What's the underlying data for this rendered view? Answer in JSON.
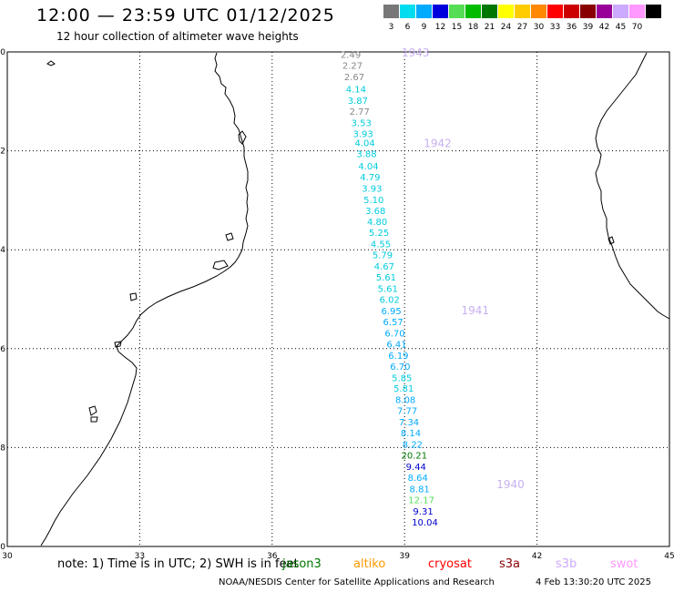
{
  "title": "12:00 — 23:59 UTC 01/12/2025",
  "subtitle": "12 hour collection of altimeter wave heights",
  "legend": {
    "unit": "(ft)",
    "items": [
      {
        "label": "3",
        "color": "#777777"
      },
      {
        "label": "6",
        "color": "#00ddee"
      },
      {
        "label": "9",
        "color": "#00aaff"
      },
      {
        "label": "12",
        "color": "#0000dd"
      },
      {
        "label": "15",
        "color": "#55dd55"
      },
      {
        "label": "18",
        "color": "#00bb00"
      },
      {
        "label": "21",
        "color": "#007700"
      },
      {
        "label": "24",
        "color": "#ffff00"
      },
      {
        "label": "27",
        "color": "#ffcc00"
      },
      {
        "label": "30",
        "color": "#ff8800"
      },
      {
        "label": "33",
        "color": "#ff0000"
      },
      {
        "label": "36",
        "color": "#cc0000"
      },
      {
        "label": "39",
        "color": "#880000"
      },
      {
        "label": "42",
        "color": "#990099"
      },
      {
        "label": "45",
        "color": "#ccaaff"
      },
      {
        "label": "70",
        "color": "#ff99ff"
      },
      {
        "label": "",
        "color": "#000000"
      }
    ]
  },
  "axes": {
    "lon_ticks": [
      "30",
      "33",
      "36",
      "39",
      "42",
      "45"
    ],
    "lat_ticks": [
      "-20",
      "-22",
      "-24",
      "-26",
      "-28",
      "-30"
    ],
    "lon_range": [
      30,
      45
    ],
    "lat_range": [
      -30,
      -20
    ],
    "grid": "dotted"
  },
  "chart_data": {
    "type": "scatter",
    "x_name": "lon",
    "y_name": "lat",
    "observations": [
      {
        "lat": -20.05,
        "lon": 37.78,
        "swh": "2.49",
        "color": "#888888"
      },
      {
        "lat": -20.27,
        "lon": 37.82,
        "swh": "2.27",
        "color": "#888888"
      },
      {
        "lat": -20.5,
        "lon": 37.86,
        "swh": "2.67",
        "color": "#888888"
      },
      {
        "lat": -20.75,
        "lon": 37.9,
        "swh": "4.14",
        "color": "#00ccdd"
      },
      {
        "lat": -20.98,
        "lon": 37.94,
        "swh": "3.87",
        "color": "#00ccdd"
      },
      {
        "lat": -21.2,
        "lon": 37.98,
        "swh": "2.77",
        "color": "#888888"
      },
      {
        "lat": -21.43,
        "lon": 38.02,
        "swh": "3.53",
        "color": "#00ccdd"
      },
      {
        "lat": -21.65,
        "lon": 38.06,
        "swh": "3.93",
        "color": "#00ccdd"
      },
      {
        "lat": -21.83,
        "lon": 38.1,
        "swh": "4.04",
        "color": "#00ccdd"
      },
      {
        "lat": -22.05,
        "lon": 38.14,
        "swh": "3.88",
        "color": "#00ccdd"
      },
      {
        "lat": -22.3,
        "lon": 38.18,
        "swh": "4.04",
        "color": "#00ccdd"
      },
      {
        "lat": -22.52,
        "lon": 38.22,
        "swh": "4.79",
        "color": "#00ccdd"
      },
      {
        "lat": -22.75,
        "lon": 38.26,
        "swh": "3.93",
        "color": "#00ccdd"
      },
      {
        "lat": -22.98,
        "lon": 38.3,
        "swh": "5.10",
        "color": "#00ccdd"
      },
      {
        "lat": -23.2,
        "lon": 38.34,
        "swh": "3.68",
        "color": "#00ccdd"
      },
      {
        "lat": -23.43,
        "lon": 38.38,
        "swh": "4.80",
        "color": "#00ccdd"
      },
      {
        "lat": -23.65,
        "lon": 38.42,
        "swh": "5.25",
        "color": "#00ccdd"
      },
      {
        "lat": -23.88,
        "lon": 38.46,
        "swh": "4.55",
        "color": "#00ccdd"
      },
      {
        "lat": -24.1,
        "lon": 38.5,
        "swh": "5.79",
        "color": "#00ccdd"
      },
      {
        "lat": -24.33,
        "lon": 38.54,
        "swh": "4.67",
        "color": "#00ccdd"
      },
      {
        "lat": -24.55,
        "lon": 38.58,
        "swh": "5.61",
        "color": "#00ccdd"
      },
      {
        "lat": -24.78,
        "lon": 38.62,
        "swh": "5.61",
        "color": "#00ccdd"
      },
      {
        "lat": -25.0,
        "lon": 38.66,
        "swh": "6.02",
        "color": "#00ccdd"
      },
      {
        "lat": -25.23,
        "lon": 38.7,
        "swh": "6.95",
        "color": "#00aaff"
      },
      {
        "lat": -25.45,
        "lon": 38.74,
        "swh": "6.57",
        "color": "#00aaff"
      },
      {
        "lat": -25.68,
        "lon": 38.78,
        "swh": "6.70",
        "color": "#00aaff"
      },
      {
        "lat": -25.9,
        "lon": 38.82,
        "swh": "6.41",
        "color": "#00aaff"
      },
      {
        "lat": -26.13,
        "lon": 38.86,
        "swh": "6.19",
        "color": "#00aaff"
      },
      {
        "lat": -26.35,
        "lon": 38.9,
        "swh": "6.70",
        "color": "#00aaff"
      },
      {
        "lat": -26.58,
        "lon": 38.94,
        "swh": "5.85",
        "color": "#00ccdd"
      },
      {
        "lat": -26.8,
        "lon": 38.98,
        "swh": "5.81",
        "color": "#00ccdd"
      },
      {
        "lat": -27.03,
        "lon": 39.02,
        "swh": "8.08",
        "color": "#00aaff"
      },
      {
        "lat": -27.25,
        "lon": 39.06,
        "swh": "7.77",
        "color": "#00aaff"
      },
      {
        "lat": -27.48,
        "lon": 39.1,
        "swh": "7.34",
        "color": "#00aaff"
      },
      {
        "lat": -27.7,
        "lon": 39.14,
        "swh": "8.14",
        "color": "#00aaff"
      },
      {
        "lat": -27.93,
        "lon": 39.18,
        "swh": "8.22",
        "color": "#00aaff"
      },
      {
        "lat": -28.15,
        "lon": 39.22,
        "swh": "20.21",
        "color": "#007700"
      },
      {
        "lat": -28.38,
        "lon": 39.26,
        "swh": "9.44",
        "color": "#0000cc"
      },
      {
        "lat": -28.6,
        "lon": 39.3,
        "swh": "8.64",
        "color": "#00aaff"
      },
      {
        "lat": -28.83,
        "lon": 39.34,
        "swh": "8.81",
        "color": "#00aaff"
      },
      {
        "lat": -29.05,
        "lon": 39.38,
        "swh": "12.17",
        "color": "#55dd55"
      },
      {
        "lat": -29.28,
        "lon": 39.42,
        "swh": "9.31",
        "color": "#0000cc"
      },
      {
        "lat": -29.5,
        "lon": 39.46,
        "swh": "10.04",
        "color": "#0000cc"
      }
    ],
    "time_labels": [
      {
        "lat": -20.02,
        "lon": 39.25,
        "text": "1943",
        "color": "#c8b0f0"
      },
      {
        "lat": -21.85,
        "lon": 39.75,
        "text": "1942",
        "color": "#c8b0f0"
      },
      {
        "lat": -25.23,
        "lon": 40.6,
        "text": "1941",
        "color": "#c8b0f0"
      },
      {
        "lat": -28.75,
        "lon": 41.4,
        "text": "1940",
        "color": "#c8b0f0"
      }
    ]
  },
  "footer": {
    "note": "note: 1) Time is in UTC; 2) SWH is in feet",
    "satellites": [
      {
        "name": "jason3",
        "color": "#007700"
      },
      {
        "name": "altiko",
        "color": "#ff9900"
      },
      {
        "name": "cryosat",
        "color": "#ff0000"
      },
      {
        "name": "s3a",
        "color": "#880000"
      },
      {
        "name": "s3b",
        "color": "#ccaaff"
      },
      {
        "name": "swot",
        "color": "#ff99ff"
      }
    ],
    "credit": "NOAA/NESDIS Center for Satellite Applications and Research",
    "timestamp": "4 Feb 13:30:20 UTC 2025"
  }
}
